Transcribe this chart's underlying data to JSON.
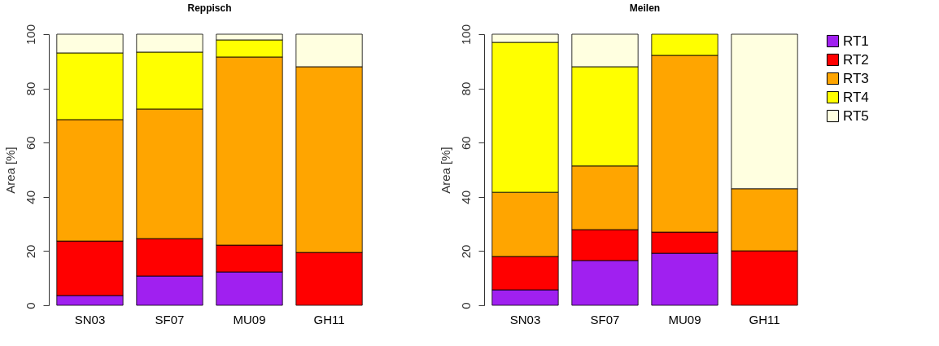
{
  "chart_data": [
    {
      "type": "bar",
      "title": "Reppisch",
      "ylabel": "Area [%]",
      "stacked": true,
      "legend": "right",
      "categories": [
        "SN03",
        "SF07",
        "MU09",
        "GH11"
      ],
      "ylim": [
        0,
        100
      ],
      "yticks": [
        0,
        20,
        40,
        60,
        80,
        100
      ],
      "grid": false,
      "series": [
        {
          "name": "RT1",
          "color": "#a020f0",
          "values": [
            3.6,
            10.8,
            12.3,
            null
          ]
        },
        {
          "name": "RT2",
          "color": "#ff0000",
          "values": [
            20.1,
            13.8,
            9.9,
            19.5
          ]
        },
        {
          "name": "RT3",
          "color": "#ffa500",
          "values": [
            44.8,
            47.8,
            69.4,
            68.5
          ]
        },
        {
          "name": "RT4",
          "color": "#ffff00",
          "values": [
            24.6,
            21.0,
            6.3,
            null
          ]
        },
        {
          "name": "RT5",
          "color": "#ffffe0",
          "values": [
            6.9,
            6.6,
            2.1,
            12.0
          ]
        }
      ]
    },
    {
      "type": "bar",
      "title": "Meilen",
      "ylabel": "Area [%]",
      "stacked": true,
      "legend": "right",
      "categories": [
        "SN03",
        "SF07",
        "MU09",
        "GH11"
      ],
      "ylim": [
        0,
        100
      ],
      "yticks": [
        0,
        20,
        40,
        60,
        80,
        100
      ],
      "grid": false,
      "series": [
        {
          "name": "RT1",
          "color": "#a020f0",
          "values": [
            5.7,
            16.5,
            19.2,
            null
          ]
        },
        {
          "name": "RT2",
          "color": "#ff0000",
          "values": [
            12.3,
            11.4,
            7.8,
            20.1
          ]
        },
        {
          "name": "RT3",
          "color": "#ffa500",
          "values": [
            23.7,
            23.5,
            65.2,
            22.9
          ]
        },
        {
          "name": "RT4",
          "color": "#ffff00",
          "values": [
            55.3,
            36.6,
            7.8,
            null
          ]
        },
        {
          "name": "RT5",
          "color": "#ffffe0",
          "values": [
            3.0,
            12.0,
            null,
            57.0
          ]
        }
      ]
    }
  ]
}
